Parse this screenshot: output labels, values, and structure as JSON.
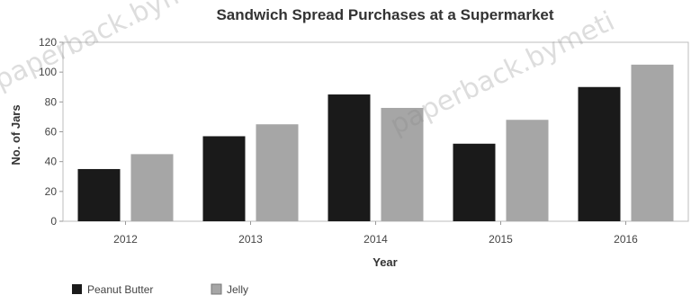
{
  "watermark_text": "paperback.bymeti",
  "chart_data": {
    "type": "bar",
    "title": "Sandwich Spread Purchases at a Supermarket",
    "xlabel": "Year",
    "ylabel": "No. of Jars",
    "ylim": [
      0,
      120
    ],
    "yticks": [
      0,
      20,
      40,
      60,
      80,
      100,
      120
    ],
    "categories": [
      "2012",
      "2013",
      "2014",
      "2015",
      "2016"
    ],
    "series": [
      {
        "name": "Peanut Butter",
        "color": "#1a1a1a",
        "values": [
          35,
          57,
          85,
          52,
          90
        ]
      },
      {
        "name": "Jelly",
        "color": "#a6a6a6",
        "values": [
          45,
          65,
          76,
          68,
          105
        ]
      }
    ],
    "grid": false,
    "legend_position": "bottom-left"
  }
}
